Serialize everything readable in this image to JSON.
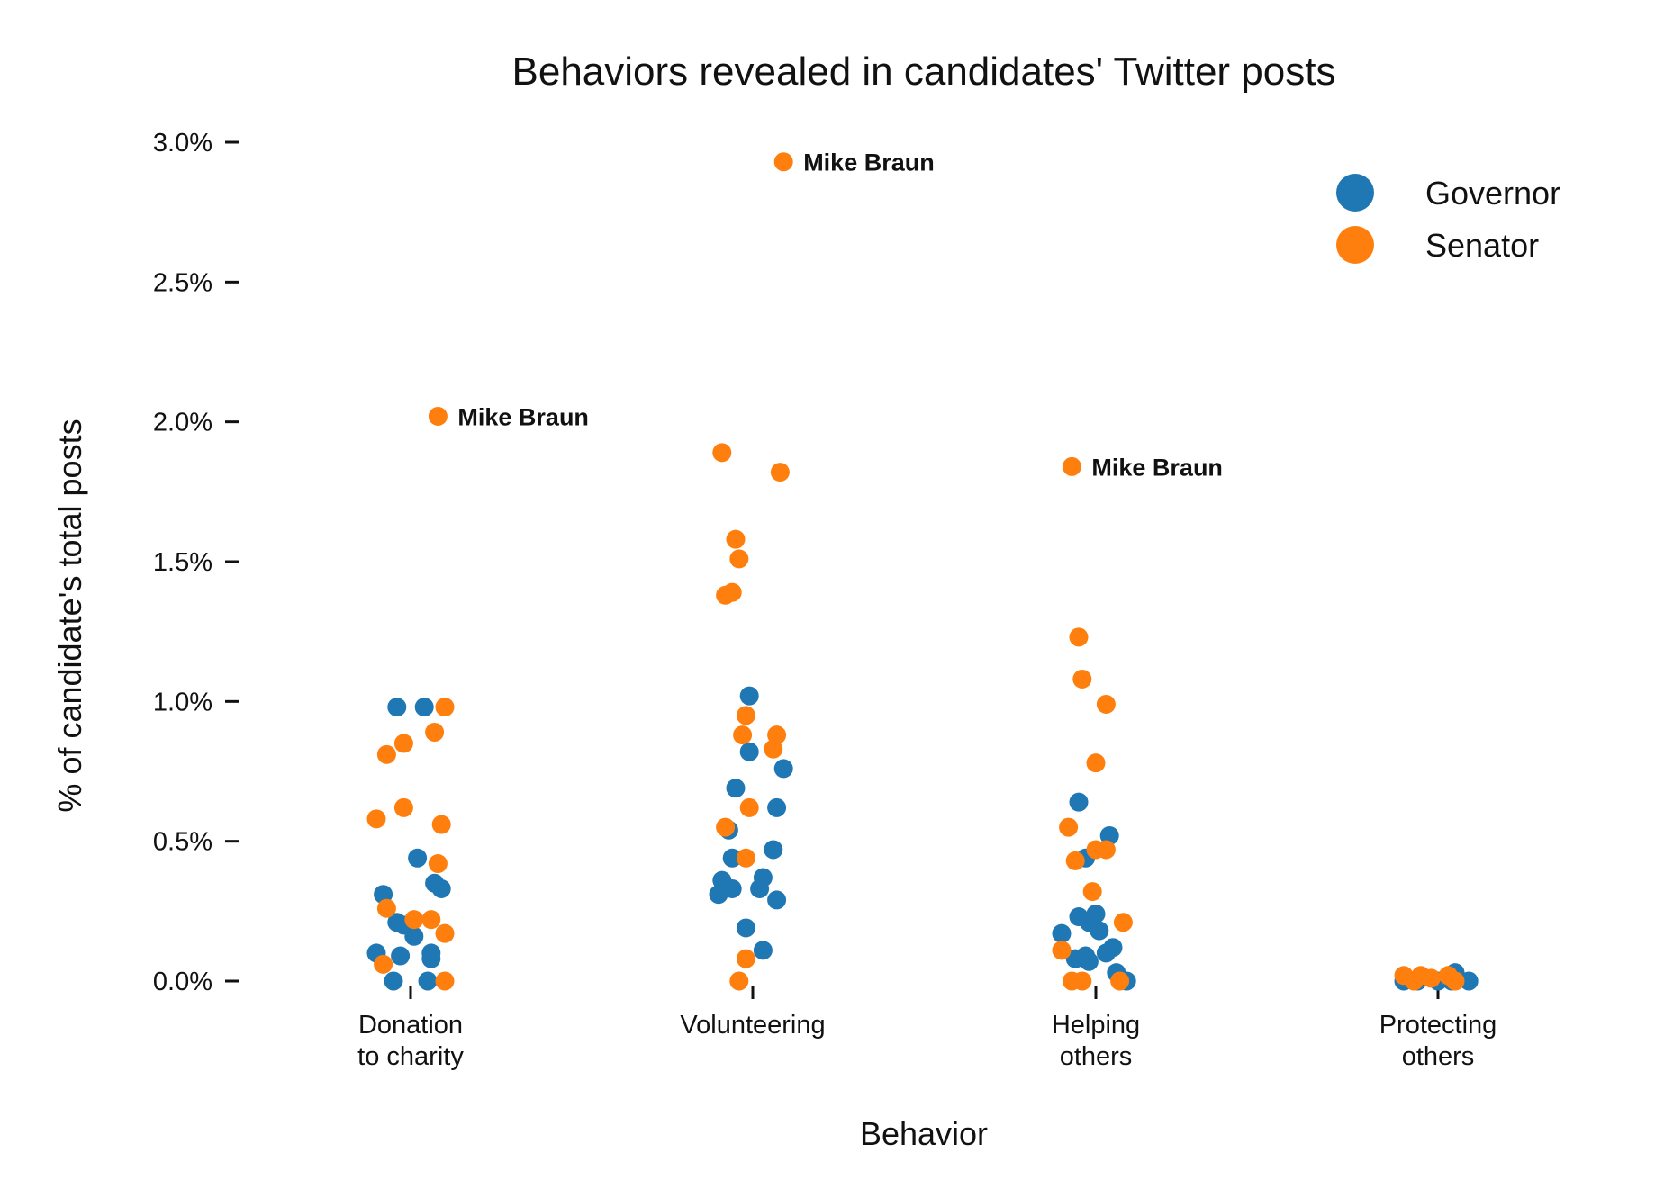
{
  "chart_data": {
    "type": "scatter",
    "subtype": "strip",
    "title": "Behaviors revealed in candidates' Twitter posts",
    "xlabel": "Behavior",
    "ylabel": "% of candidate's total posts",
    "ylim": [
      0,
      3.0
    ],
    "yticks": [
      0.0,
      0.5,
      1.0,
      1.5,
      2.0,
      2.5,
      3.0
    ],
    "ytick_labels": [
      "0.0%",
      "0.5%",
      "1.0%",
      "1.5%",
      "2.0%",
      "2.5%",
      "3.0%"
    ],
    "categories": [
      {
        "key": "donation",
        "lines": [
          "Donation",
          "to charity"
        ]
      },
      {
        "key": "volunteering",
        "lines": [
          "Volunteering"
        ]
      },
      {
        "key": "helping",
        "lines": [
          "Helping",
          "others"
        ]
      },
      {
        "key": "protecting",
        "lines": [
          "Protecting",
          "others"
        ]
      }
    ],
    "legend_position": "top-right",
    "series": [
      {
        "name": "Governor",
        "color": "#1f77b4",
        "points": [
          {
            "cat": 0,
            "jitter": -0.04,
            "y": 0.98
          },
          {
            "cat": 0,
            "jitter": 0.04,
            "y": 0.98
          },
          {
            "cat": 0,
            "jitter": 0.02,
            "y": 0.44
          },
          {
            "cat": 0,
            "jitter": 0.07,
            "y": 0.35
          },
          {
            "cat": 0,
            "jitter": 0.09,
            "y": 0.33
          },
          {
            "cat": 0,
            "jitter": -0.08,
            "y": 0.31
          },
          {
            "cat": 0,
            "jitter": -0.04,
            "y": 0.21
          },
          {
            "cat": 0,
            "jitter": -0.02,
            "y": 0.2
          },
          {
            "cat": 0,
            "jitter": 0.01,
            "y": 0.16
          },
          {
            "cat": 0,
            "jitter": -0.1,
            "y": 0.1
          },
          {
            "cat": 0,
            "jitter": 0.06,
            "y": 0.1
          },
          {
            "cat": 0,
            "jitter": -0.03,
            "y": 0.09
          },
          {
            "cat": 0,
            "jitter": 0.06,
            "y": 0.08
          },
          {
            "cat": 0,
            "jitter": -0.05,
            "y": 0.0
          },
          {
            "cat": 0,
            "jitter": 0.05,
            "y": 0.0
          },
          {
            "cat": 1,
            "jitter": -0.01,
            "y": 1.02
          },
          {
            "cat": 1,
            "jitter": -0.01,
            "y": 0.82
          },
          {
            "cat": 1,
            "jitter": 0.09,
            "y": 0.76
          },
          {
            "cat": 1,
            "jitter": -0.05,
            "y": 0.69
          },
          {
            "cat": 1,
            "jitter": 0.07,
            "y": 0.62
          },
          {
            "cat": 1,
            "jitter": -0.07,
            "y": 0.54
          },
          {
            "cat": 1,
            "jitter": 0.06,
            "y": 0.47
          },
          {
            "cat": 1,
            "jitter": -0.06,
            "y": 0.44
          },
          {
            "cat": 1,
            "jitter": 0.03,
            "y": 0.37
          },
          {
            "cat": 1,
            "jitter": -0.09,
            "y": 0.36
          },
          {
            "cat": 1,
            "jitter": -0.06,
            "y": 0.33
          },
          {
            "cat": 1,
            "jitter": 0.02,
            "y": 0.33
          },
          {
            "cat": 1,
            "jitter": -0.1,
            "y": 0.31
          },
          {
            "cat": 1,
            "jitter": 0.07,
            "y": 0.29
          },
          {
            "cat": 1,
            "jitter": -0.02,
            "y": 0.19
          },
          {
            "cat": 1,
            "jitter": 0.03,
            "y": 0.11
          },
          {
            "cat": 2,
            "jitter": -0.05,
            "y": 0.64
          },
          {
            "cat": 2,
            "jitter": 0.04,
            "y": 0.52
          },
          {
            "cat": 2,
            "jitter": -0.03,
            "y": 0.44
          },
          {
            "cat": 2,
            "jitter": -0.05,
            "y": 0.23
          },
          {
            "cat": 2,
            "jitter": 0.0,
            "y": 0.24
          },
          {
            "cat": 2,
            "jitter": -0.02,
            "y": 0.21
          },
          {
            "cat": 2,
            "jitter": 0.01,
            "y": 0.18
          },
          {
            "cat": 2,
            "jitter": -0.1,
            "y": 0.17
          },
          {
            "cat": 2,
            "jitter": 0.05,
            "y": 0.12
          },
          {
            "cat": 2,
            "jitter": 0.03,
            "y": 0.1
          },
          {
            "cat": 2,
            "jitter": -0.06,
            "y": 0.08
          },
          {
            "cat": 2,
            "jitter": -0.03,
            "y": 0.09
          },
          {
            "cat": 2,
            "jitter": -0.02,
            "y": 0.07
          },
          {
            "cat": 2,
            "jitter": 0.06,
            "y": 0.03
          },
          {
            "cat": 2,
            "jitter": 0.09,
            "y": 0.0
          },
          {
            "cat": 3,
            "jitter": 0.05,
            "y": 0.03
          },
          {
            "cat": 3,
            "jitter": -0.1,
            "y": 0.0
          },
          {
            "cat": 3,
            "jitter": -0.06,
            "y": 0.0
          },
          {
            "cat": 3,
            "jitter": 0.0,
            "y": 0.0
          },
          {
            "cat": 3,
            "jitter": 0.04,
            "y": 0.0
          },
          {
            "cat": 3,
            "jitter": 0.09,
            "y": 0.0
          }
        ]
      },
      {
        "name": "Senator",
        "color": "#ff7f0e",
        "points": [
          {
            "cat": 0,
            "jitter": 0.08,
            "y": 2.02,
            "label": "Mike Braun"
          },
          {
            "cat": 0,
            "jitter": 0.1,
            "y": 0.98
          },
          {
            "cat": 0,
            "jitter": 0.07,
            "y": 0.89
          },
          {
            "cat": 0,
            "jitter": -0.02,
            "y": 0.85
          },
          {
            "cat": 0,
            "jitter": -0.07,
            "y": 0.81
          },
          {
            "cat": 0,
            "jitter": -0.02,
            "y": 0.62
          },
          {
            "cat": 0,
            "jitter": -0.1,
            "y": 0.58
          },
          {
            "cat": 0,
            "jitter": 0.09,
            "y": 0.56
          },
          {
            "cat": 0,
            "jitter": 0.08,
            "y": 0.42
          },
          {
            "cat": 0,
            "jitter": -0.07,
            "y": 0.26
          },
          {
            "cat": 0,
            "jitter": 0.06,
            "y": 0.22
          },
          {
            "cat": 0,
            "jitter": 0.01,
            "y": 0.22
          },
          {
            "cat": 0,
            "jitter": 0.1,
            "y": 0.17
          },
          {
            "cat": 0,
            "jitter": -0.08,
            "y": 0.06
          },
          {
            "cat": 0,
            "jitter": 0.1,
            "y": 0.0
          },
          {
            "cat": 1,
            "jitter": 0.09,
            "y": 2.93,
            "label": "Mike Braun"
          },
          {
            "cat": 1,
            "jitter": -0.09,
            "y": 1.89
          },
          {
            "cat": 1,
            "jitter": 0.08,
            "y": 1.82
          },
          {
            "cat": 1,
            "jitter": -0.05,
            "y": 1.58
          },
          {
            "cat": 1,
            "jitter": -0.04,
            "y": 1.51
          },
          {
            "cat": 1,
            "jitter": -0.06,
            "y": 1.39
          },
          {
            "cat": 1,
            "jitter": -0.08,
            "y": 1.38
          },
          {
            "cat": 1,
            "jitter": -0.02,
            "y": 0.95
          },
          {
            "cat": 1,
            "jitter": -0.03,
            "y": 0.88
          },
          {
            "cat": 1,
            "jitter": 0.07,
            "y": 0.88
          },
          {
            "cat": 1,
            "jitter": 0.06,
            "y": 0.83
          },
          {
            "cat": 1,
            "jitter": -0.01,
            "y": 0.62
          },
          {
            "cat": 1,
            "jitter": -0.08,
            "y": 0.55
          },
          {
            "cat": 1,
            "jitter": -0.02,
            "y": 0.44
          },
          {
            "cat": 1,
            "jitter": -0.02,
            "y": 0.08
          },
          {
            "cat": 1,
            "jitter": -0.04,
            "y": 0.0
          },
          {
            "cat": 2,
            "jitter": -0.07,
            "y": 1.84,
            "label": "Mike Braun"
          },
          {
            "cat": 2,
            "jitter": -0.05,
            "y": 1.23
          },
          {
            "cat": 2,
            "jitter": -0.04,
            "y": 1.08
          },
          {
            "cat": 2,
            "jitter": 0.03,
            "y": 0.99
          },
          {
            "cat": 2,
            "jitter": 0.0,
            "y": 0.78
          },
          {
            "cat": 2,
            "jitter": -0.08,
            "y": 0.55
          },
          {
            "cat": 2,
            "jitter": 0.0,
            "y": 0.47
          },
          {
            "cat": 2,
            "jitter": 0.03,
            "y": 0.47
          },
          {
            "cat": 2,
            "jitter": -0.06,
            "y": 0.43
          },
          {
            "cat": 2,
            "jitter": -0.01,
            "y": 0.32
          },
          {
            "cat": 2,
            "jitter": 0.08,
            "y": 0.21
          },
          {
            "cat": 2,
            "jitter": -0.1,
            "y": 0.11
          },
          {
            "cat": 2,
            "jitter": -0.07,
            "y": 0.0
          },
          {
            "cat": 2,
            "jitter": -0.04,
            "y": 0.0
          },
          {
            "cat": 2,
            "jitter": 0.07,
            "y": 0.0
          },
          {
            "cat": 3,
            "jitter": -0.1,
            "y": 0.02
          },
          {
            "cat": 3,
            "jitter": -0.05,
            "y": 0.02
          },
          {
            "cat": 3,
            "jitter": -0.02,
            "y": 0.01
          },
          {
            "cat": 3,
            "jitter": 0.03,
            "y": 0.02
          },
          {
            "cat": 3,
            "jitter": 0.05,
            "y": 0.0
          },
          {
            "cat": 3,
            "jitter": -0.07,
            "y": 0.0
          }
        ]
      }
    ]
  }
}
